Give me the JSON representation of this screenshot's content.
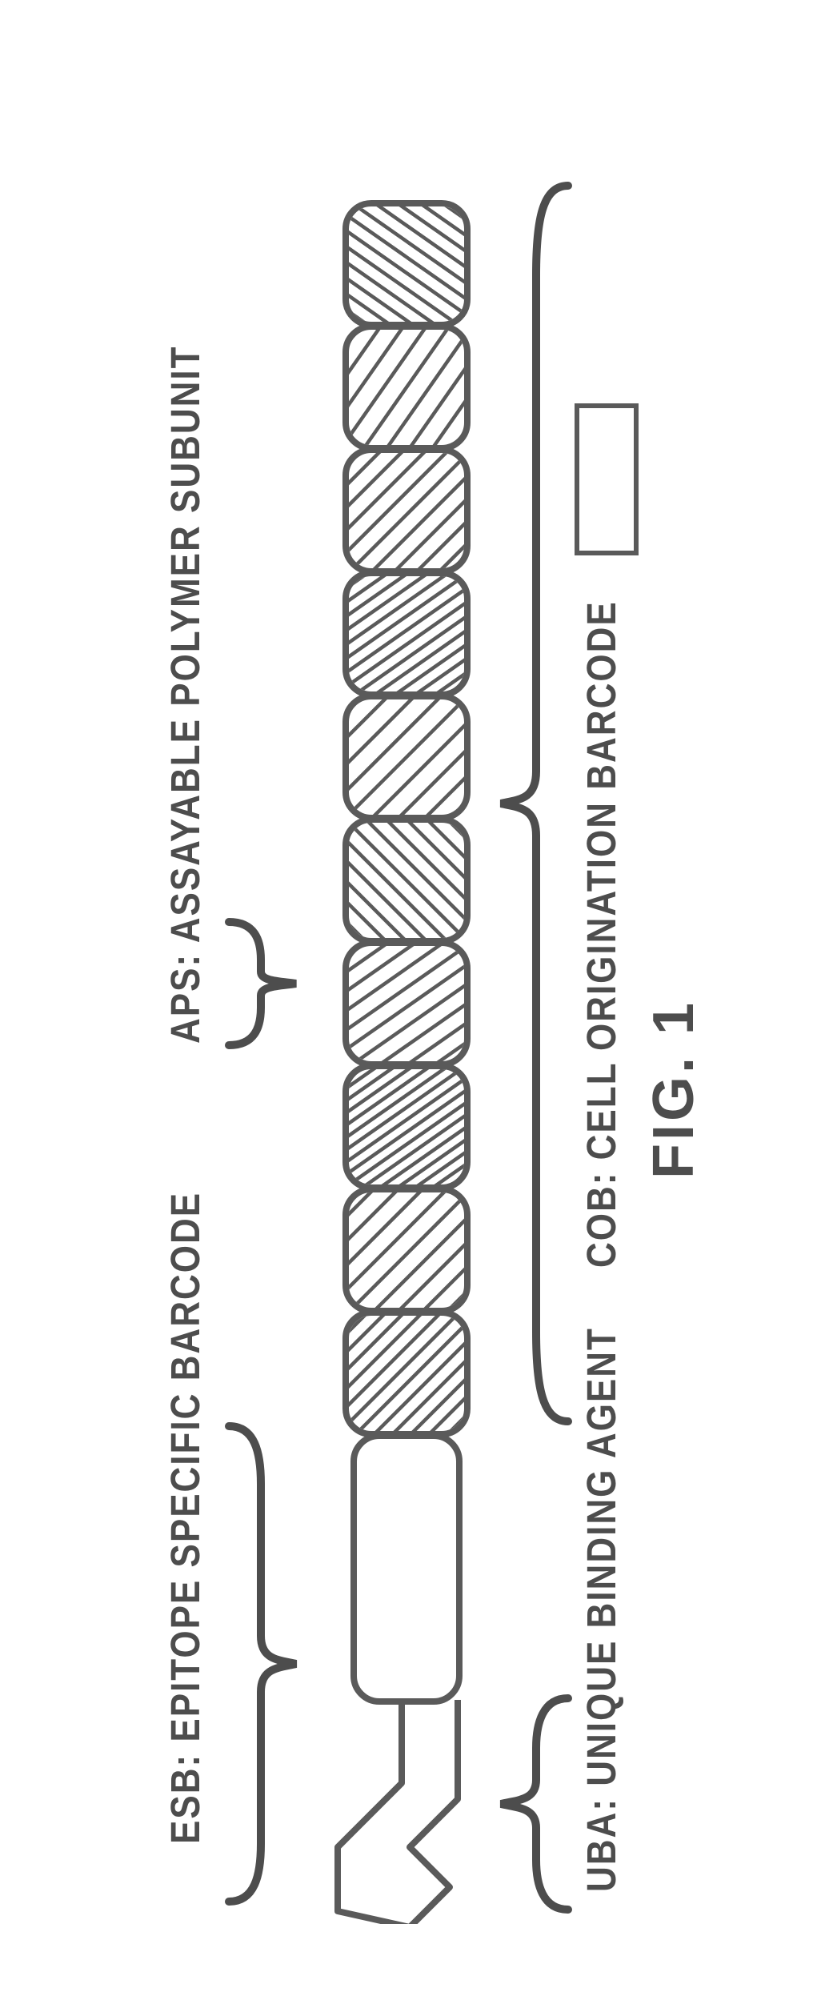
{
  "figure_label": "FIG. 1",
  "labels": {
    "esb": "ESB: EPITOPE SPECIFIC BARCODE",
    "aps": "APS: ASSAYABLE POLYMER SUBUNIT",
    "uba": "UBA: UNIQUE BINDING AGENT",
    "cob": "COB: CELL ORIGINATION BARCODE"
  },
  "stroke_color": "#5a5a5a",
  "background_color": "#ffffff",
  "subunit_count": 10,
  "subunits": [
    {
      "angle": 45,
      "spacing": 18
    },
    {
      "angle": 45,
      "spacing": 24
    },
    {
      "angle": 55,
      "spacing": 14
    },
    {
      "angle": 55,
      "spacing": 22
    },
    {
      "angle": 135,
      "spacing": 20
    },
    {
      "angle": 45,
      "spacing": 26
    },
    {
      "angle": 55,
      "spacing": 16
    },
    {
      "angle": 45,
      "spacing": 22
    },
    {
      "angle": 35,
      "spacing": 26
    },
    {
      "angle": 125,
      "spacing": 18
    }
  ],
  "esb": {
    "fill": "#ffffff"
  },
  "antibody": {
    "stroke": "#5a5a5a",
    "fill": "#ffffff"
  },
  "legend": {
    "fill": "#ffffff",
    "stroke": "#5a5a5a"
  },
  "braces": {
    "esb": {
      "span": 610,
      "tip_down": true
    },
    "aps": {
      "span": 170,
      "tip_down": true
    },
    "uba": {
      "span": 280,
      "tip_down": false
    },
    "cob": {
      "span": 1560,
      "tip_down": false
    }
  }
}
